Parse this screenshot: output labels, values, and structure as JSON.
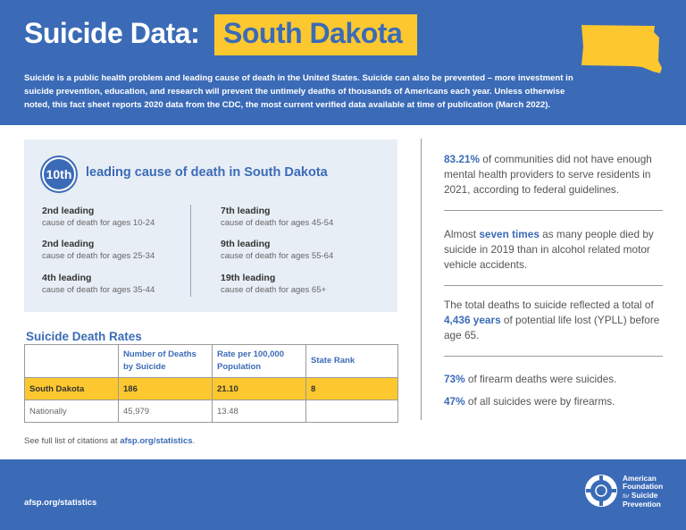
{
  "header": {
    "title_prefix": "Suicide Data:",
    "title_state": "South Dakota",
    "intro": "Suicide is a public health problem and leading cause of death in the United States. Suicide can also be prevented – more investment in suicide prevention, education, and research will prevent the untimely deaths of thousands of Americans each year. Unless otherwise noted, this fact sheet reports 2020 data from the CDC, the most current verified data available at time of publication (March 2022).",
    "state_shape_icon": "south-dakota-map-icon"
  },
  "leading_cause": {
    "badge": "10th",
    "title": "leading cause of death in South Dakota",
    "items": [
      {
        "rank": "2nd leading",
        "desc": "cause of death for ages 10-24"
      },
      {
        "rank": "2nd leading",
        "desc": "cause of death for ages 25-34"
      },
      {
        "rank": "4th leading",
        "desc": "cause of death for ages 35-44"
      },
      {
        "rank": "7th leading",
        "desc": "cause of death for ages 45-54"
      },
      {
        "rank": "9th leading",
        "desc": "cause of death for ages 55-64"
      },
      {
        "rank": "19th leading",
        "desc": "cause of death for ages 65+"
      }
    ]
  },
  "rates": {
    "title": "Suicide Death Rates",
    "headers": [
      "",
      "Number of Deaths by Suicide",
      "Rate per 100,000 Population",
      "State Rank"
    ],
    "rows": [
      [
        "South Dakota",
        "186",
        "21.10",
        "8"
      ],
      [
        "Nationally",
        "45,979",
        "13.48",
        ""
      ]
    ]
  },
  "citation": {
    "prefix": "See full list of citations at ",
    "link": "afsp.org/statistics",
    "suffix": "."
  },
  "stats": [
    {
      "highlight": "83.21%",
      "before": "",
      "after": " of communities did not have enough mental health providers to serve residents in 2021, according to federal guidelines."
    },
    {
      "before": "Almost ",
      "highlight": "seven times",
      "after": " as many people died by suicide in 2019 than in alcohol related motor vehicle accidents."
    },
    {
      "before": "The total deaths to suicide reflected a total of ",
      "highlight": "4,436 years",
      "after": " of potential life lost (YPLL) before age 65."
    },
    {
      "highlight": "73%",
      "before": "",
      "after": " of firearm deaths were suicides."
    },
    {
      "highlight": "47%",
      "before": "",
      "after": " of all suicides were by firearms."
    }
  ],
  "footer": {
    "url": "afsp.org/statistics",
    "logo_line1": "American",
    "logo_line2": "Foundation",
    "logo_for": "for",
    "logo_line3": "Suicide",
    "logo_line4": "Prevention",
    "logo_icon": "lifebuoy-logo-icon"
  },
  "colors": {
    "brand_blue": "#3b6bb7",
    "accent_yellow": "#fdc82f",
    "panel_bg": "#e8eef6"
  }
}
